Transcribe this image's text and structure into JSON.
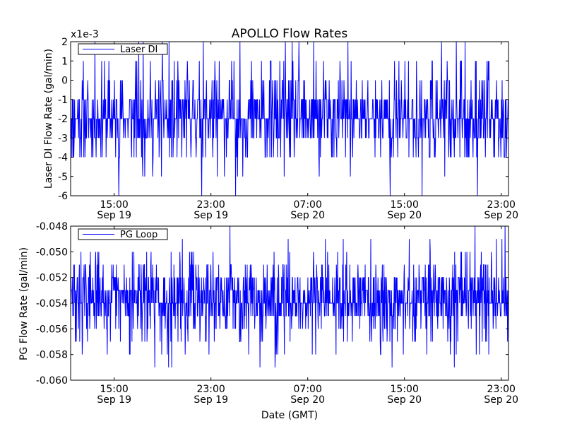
{
  "chart_data": [
    {
      "type": "line",
      "title": "APOLLO Flow Rates",
      "ylabel": "Laser DI Flow Rate (gal/min)",
      "xlabel": "",
      "offset_label": "x1e-3",
      "ylim": [
        -6,
        2
      ],
      "yticks": [
        "-6",
        "-5",
        "-4",
        "-3",
        "-2",
        "-1",
        "0",
        "1",
        "2"
      ],
      "xticks": [
        {
          "time": "15:00",
          "date": "Sep 19"
        },
        {
          "time": "23:00",
          "date": "Sep 19"
        },
        {
          "time": "07:00",
          "date": "Sep 20"
        },
        {
          "time": "15:00",
          "date": "Sep 20"
        },
        {
          "time": "23:00",
          "date": "Sep 20"
        }
      ],
      "xlim_hours": [
        11.4,
        47.6
      ],
      "xtick_hours": [
        15,
        23,
        31,
        39,
        47
      ],
      "grid": false,
      "legend": "top-left",
      "color": "#0000ff",
      "series": [
        {
          "name": "Laser DI",
          "levels": [
            -6,
            -5,
            -4,
            -3,
            -2,
            -1,
            0,
            1,
            2
          ],
          "level_weights": [
            0.005,
            0.02,
            0.08,
            0.2,
            0.35,
            0.22,
            0.08,
            0.035,
            0.01
          ],
          "sample_count": 1100
        }
      ]
    },
    {
      "type": "line",
      "title": "",
      "ylabel": "PG Flow Rate (gal/min)",
      "xlabel": "Date (GMT)",
      "ylim": [
        -0.06,
        -0.048
      ],
      "yticks": [
        "-0.060",
        "-0.058",
        "-0.056",
        "-0.054",
        "-0.052",
        "-0.050",
        "-0.048"
      ],
      "xticks": [
        {
          "time": "15:00",
          "date": "Sep 19"
        },
        {
          "time": "23:00",
          "date": "Sep 19"
        },
        {
          "time": "07:00",
          "date": "Sep 20"
        },
        {
          "time": "15:00",
          "date": "Sep 20"
        },
        {
          "time": "23:00",
          "date": "Sep 20"
        }
      ],
      "xlim_hours": [
        11.4,
        47.6
      ],
      "xtick_hours": [
        15,
        23,
        31,
        39,
        47
      ],
      "grid": false,
      "legend": "top-left",
      "color": "#0000ff",
      "series": [
        {
          "name": "PG Loop",
          "levels": [
            -0.059,
            -0.058,
            -0.057,
            -0.056,
            -0.055,
            -0.054,
            -0.053,
            -0.052,
            -0.051,
            -0.05,
            -0.049,
            -0.048
          ],
          "level_weights": [
            0.005,
            0.015,
            0.03,
            0.06,
            0.15,
            0.3,
            0.2,
            0.15,
            0.05,
            0.025,
            0.01,
            0.005
          ],
          "sample_count": 1400
        }
      ]
    }
  ]
}
